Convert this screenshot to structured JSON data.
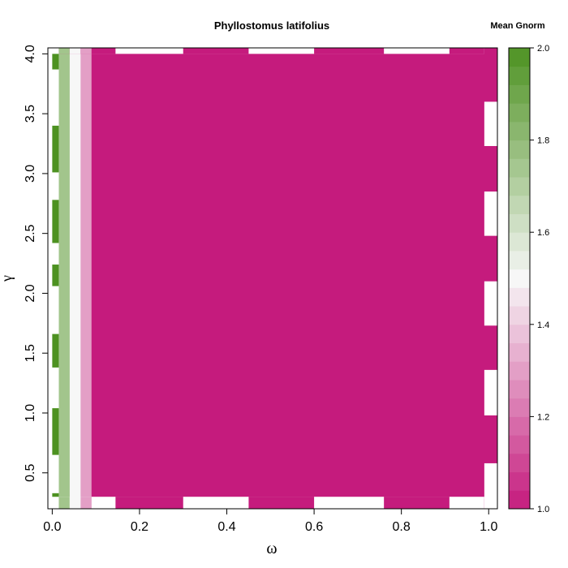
{
  "chart_data": {
    "type": "heatmap",
    "title": "Phyllostomus latifolius",
    "xlabel": "ω",
    "ylabel": "γ",
    "xlim": [
      -0.01,
      1.02
    ],
    "ylim": [
      0.2,
      4.05
    ],
    "x_ticks": [
      "0.0",
      "0.2",
      "0.4",
      "0.6",
      "0.8",
      "1.0"
    ],
    "y_ticks": [
      "0.5",
      "1.0",
      "1.5",
      "2.0",
      "2.5",
      "3.0",
      "3.5",
      "4.0"
    ],
    "columns": [
      {
        "x0": 0.0,
        "x1": 0.015,
        "value": "alternating-green-white"
      },
      {
        "x0": 0.015,
        "x1": 0.04,
        "value": 1.75
      },
      {
        "x0": 0.04,
        "x1": 0.065,
        "value": 1.5
      },
      {
        "x0": 0.065,
        "x1": 0.09,
        "value": 1.3
      },
      {
        "x0": 0.09,
        "x1": 0.99,
        "value": 1.0
      }
    ],
    "white_gaps": {
      "top": [
        [
          0.145,
          0.3
        ],
        [
          0.45,
          0.6
        ],
        [
          0.76,
          0.91
        ]
      ],
      "bottom": [
        [
          0.0,
          0.145
        ],
        [
          0.3,
          0.45
        ],
        [
          0.6,
          0.76
        ],
        [
          0.91,
          0.99
        ]
      ],
      "right": [
        [
          0.28,
          0.58
        ],
        [
          0.98,
          1.36
        ],
        [
          1.73,
          2.1
        ],
        [
          2.48,
          2.85
        ],
        [
          3.23,
          3.6
        ]
      ],
      "left_green": [
        [
          0.2,
          0.33
        ],
        [
          0.65,
          1.04
        ],
        [
          1.38,
          1.66
        ],
        [
          2.06,
          2.24
        ],
        [
          2.42,
          2.78
        ],
        [
          3.01,
          3.4
        ],
        [
          3.87,
          4.05
        ]
      ]
    },
    "legend": {
      "title": "Mean Gnorm",
      "min": 1.0,
      "max": 2.0,
      "ticks": [
        "1.0",
        "1.2",
        "1.4",
        "1.6",
        "1.8",
        "2.0"
      ],
      "low_color": "#c51b7d",
      "mid_color": "#f7f7f7",
      "high_color": "#4d9221"
    }
  }
}
